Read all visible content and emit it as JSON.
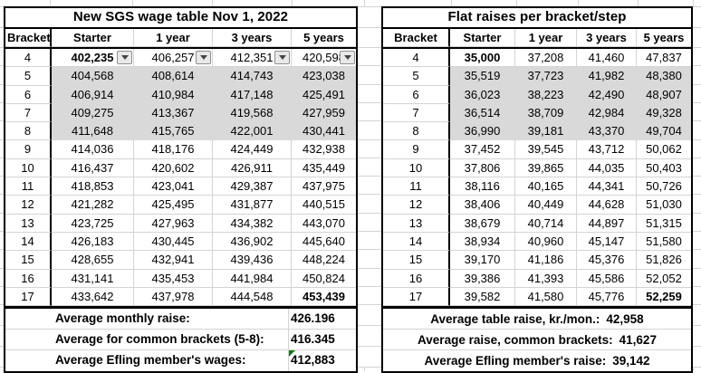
{
  "colors": {
    "shaded_row": "#d9d9d9",
    "gridline": "#d4d4d4",
    "table_border": "#000000",
    "error_indicator_green": "#0c7d0c"
  },
  "left_table": {
    "title": "New SGS wage table Nov 1, 2022",
    "columns": [
      "Bracket",
      "Starter",
      "1 year",
      "3 years",
      "5 years"
    ],
    "rows": [
      {
        "bracket": "4",
        "values": [
          "402,235",
          "406,257",
          "412,351",
          "420,598"
        ],
        "shaded": false,
        "bold_value_index": 0,
        "has_filter_dropdowns": true
      },
      {
        "bracket": "5",
        "values": [
          "404,568",
          "408,614",
          "414,743",
          "423,038"
        ],
        "shaded": true
      },
      {
        "bracket": "6",
        "values": [
          "406,914",
          "410,984",
          "417,148",
          "425,491"
        ],
        "shaded": true
      },
      {
        "bracket": "7",
        "values": [
          "409,275",
          "413,367",
          "419,568",
          "427,959"
        ],
        "shaded": true
      },
      {
        "bracket": "8",
        "values": [
          "411,648",
          "415,765",
          "422,001",
          "430,441"
        ],
        "shaded": true
      },
      {
        "bracket": "9",
        "values": [
          "414,036",
          "418,176",
          "424,449",
          "432,938"
        ],
        "shaded": false
      },
      {
        "bracket": "10",
        "values": [
          "416,437",
          "420,602",
          "426,911",
          "435,449"
        ],
        "shaded": false
      },
      {
        "bracket": "11",
        "values": [
          "418,853",
          "423,041",
          "429,387",
          "437,975"
        ],
        "shaded": false
      },
      {
        "bracket": "12",
        "values": [
          "421,282",
          "425,495",
          "431,877",
          "440,515"
        ],
        "shaded": false
      },
      {
        "bracket": "13",
        "values": [
          "423,725",
          "427,963",
          "434,382",
          "443,070"
        ],
        "shaded": false
      },
      {
        "bracket": "14",
        "values": [
          "426,183",
          "430,445",
          "436,902",
          "445,640"
        ],
        "shaded": false
      },
      {
        "bracket": "15",
        "values": [
          "428,655",
          "432,941",
          "439,436",
          "448,224"
        ],
        "shaded": false
      },
      {
        "bracket": "16",
        "values": [
          "431,141",
          "435,453",
          "441,984",
          "450,824"
        ],
        "shaded": false
      },
      {
        "bracket": "17",
        "values": [
          "433,642",
          "437,978",
          "444,548",
          "453,439"
        ],
        "shaded": false,
        "bold_value_index": 3
      }
    ],
    "summary_rows": [
      {
        "label": "Average monthly raise:",
        "value": "426.196",
        "has_error_indicator": false
      },
      {
        "label": "Average for common brackets (5-8):",
        "value": "416.345",
        "has_error_indicator": false
      },
      {
        "label": "Average Efling member's wages:",
        "value": "412,883",
        "has_error_indicator": true
      }
    ]
  },
  "right_table": {
    "title": "Flat raises per bracket/step",
    "columns": [
      "Bracket",
      "Starter",
      "1 year",
      "3 years",
      "5 years"
    ],
    "rows": [
      {
        "bracket": "4",
        "values": [
          "35,000",
          "37,208",
          "41,460",
          "47,837"
        ],
        "shaded": false,
        "bold_value_index": 0
      },
      {
        "bracket": "5",
        "values": [
          "35,519",
          "37,723",
          "41,982",
          "48,380"
        ],
        "shaded": true
      },
      {
        "bracket": "6",
        "values": [
          "36,023",
          "38,223",
          "42,490",
          "48,907"
        ],
        "shaded": true
      },
      {
        "bracket": "7",
        "values": [
          "36,514",
          "38,709",
          "42,984",
          "49,328"
        ],
        "shaded": true
      },
      {
        "bracket": "8",
        "values": [
          "36,990",
          "39,181",
          "43,370",
          "49,704"
        ],
        "shaded": true
      },
      {
        "bracket": "9",
        "values": [
          "37,452",
          "39,545",
          "43,712",
          "50,062"
        ],
        "shaded": false
      },
      {
        "bracket": "10",
        "values": [
          "37,806",
          "39,865",
          "44,035",
          "50,403"
        ],
        "shaded": false
      },
      {
        "bracket": "11",
        "values": [
          "38,116",
          "40,165",
          "44,341",
          "50,726"
        ],
        "shaded": false
      },
      {
        "bracket": "12",
        "values": [
          "38,406",
          "40,449",
          "44,628",
          "51,030"
        ],
        "shaded": false
      },
      {
        "bracket": "13",
        "values": [
          "38,679",
          "40,714",
          "44,897",
          "51,315"
        ],
        "shaded": false
      },
      {
        "bracket": "14",
        "values": [
          "38,934",
          "40,960",
          "45,147",
          "51,580"
        ],
        "shaded": false
      },
      {
        "bracket": "15",
        "values": [
          "39,170",
          "41,186",
          "45,376",
          "51,826"
        ],
        "shaded": false
      },
      {
        "bracket": "16",
        "values": [
          "39,386",
          "41,393",
          "45,586",
          "52,052"
        ],
        "shaded": false
      },
      {
        "bracket": "17",
        "values": [
          "39,582",
          "41,580",
          "45,776",
          "52,259"
        ],
        "shaded": false,
        "bold_value_index": 3
      }
    ],
    "summary_rows": [
      {
        "label": "Average table raise, kr./mon.:",
        "value": "42,958"
      },
      {
        "label": "Average raise, common brackets:",
        "value": "41,627"
      },
      {
        "label": "Average Efling member's raise:",
        "value": "39,142"
      }
    ]
  }
}
